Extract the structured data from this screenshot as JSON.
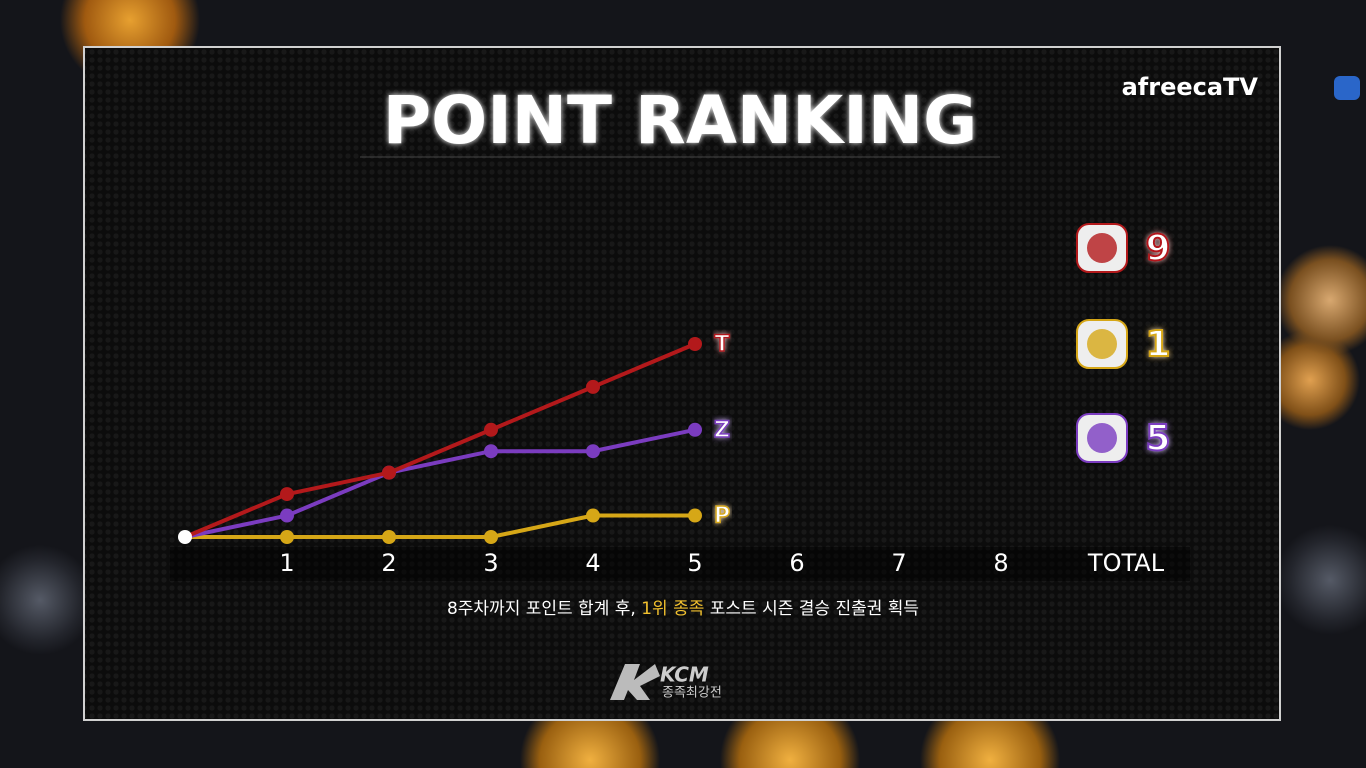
{
  "chart_data": {
    "type": "line",
    "title": "POINT RANKING",
    "x": [
      0,
      1,
      2,
      3,
      4,
      5
    ],
    "xlim": [
      0,
      8
    ],
    "xticks": [
      1,
      2,
      3,
      4,
      5,
      6,
      7,
      8
    ],
    "total_label": "TOTAL",
    "ylim": [
      0,
      9
    ],
    "series": [
      {
        "name": "T",
        "color": "#b3191b",
        "values": [
          0,
          2,
          3,
          5,
          7,
          9
        ],
        "total": 9
      },
      {
        "name": "P",
        "color": "#d6a717",
        "values": [
          0,
          0,
          0,
          0,
          1,
          1
        ],
        "total": 1
      },
      {
        "name": "Z",
        "color": "#7b3cc0",
        "values": [
          0,
          1,
          3,
          4,
          4,
          5
        ],
        "total": 5
      }
    ],
    "note": [
      "8주차까지 포인트 합계 후, ",
      "1위 종족",
      " 포스트 시즌 결승 진출권 획득"
    ]
  },
  "branding": {
    "channel": "afreecaTV",
    "logo": "KCM",
    "logo_sub": "종족최강전"
  }
}
